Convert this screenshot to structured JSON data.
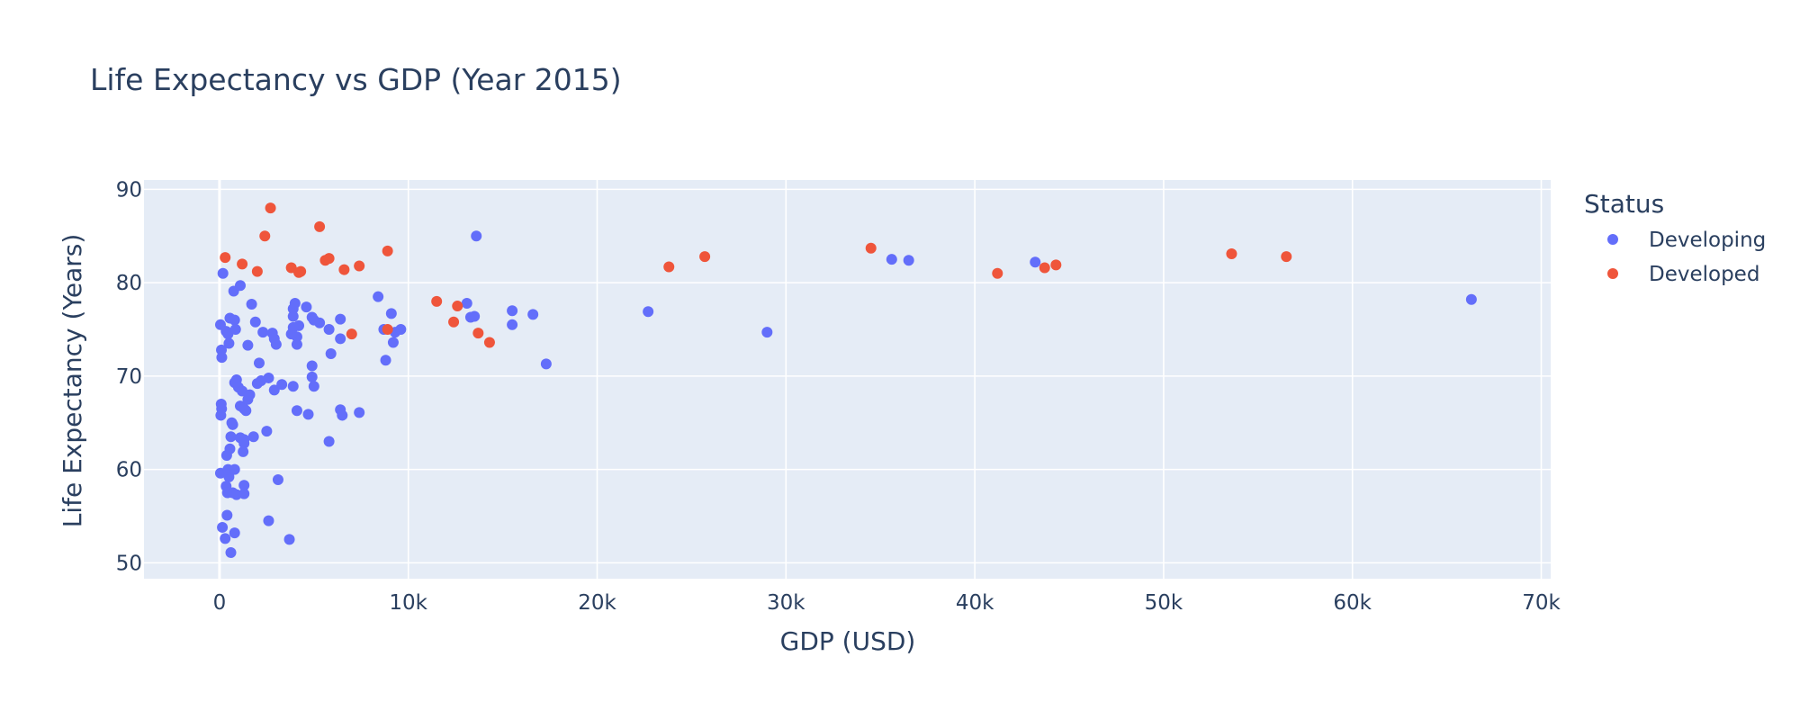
{
  "chart_data": {
    "type": "scatter",
    "title": "Life Expectancy vs GDP (Year 2015)",
    "xlabel": "GDP (USD)",
    "ylabel": "Life Expectancy (Years)",
    "xlim": [
      -4000,
      70500
    ],
    "ylim": [
      48.3,
      91
    ],
    "x_ticks": [
      0,
      10000,
      20000,
      30000,
      40000,
      50000,
      60000,
      70000
    ],
    "x_tick_labels": [
      "0",
      "10k",
      "20k",
      "30k",
      "40k",
      "50k",
      "60k",
      "70k"
    ],
    "y_ticks": [
      50,
      60,
      70,
      80,
      90
    ],
    "y_tick_labels": [
      "50",
      "60",
      "70",
      "80",
      "90"
    ],
    "grid": true,
    "background": "#e5ecf6",
    "legend": {
      "title": "Status",
      "placement": "right"
    },
    "series": [
      {
        "name": "Developing",
        "color": "#636efa",
        "points": [
          [
            50,
            75.5
          ],
          [
            100,
            72.8
          ],
          [
            120,
            72.0
          ],
          [
            180,
            81.0
          ],
          [
            90,
            67.0
          ],
          [
            110,
            66.5
          ],
          [
            70,
            65.8
          ],
          [
            50,
            59.6
          ],
          [
            150,
            53.8
          ],
          [
            300,
            52.6
          ],
          [
            600,
            51.1
          ],
          [
            400,
            55.1
          ],
          [
            350,
            58.2
          ],
          [
            420,
            57.5
          ],
          [
            500,
            59.2
          ],
          [
            450,
            60.0
          ],
          [
            380,
            61.5
          ],
          [
            550,
            62.2
          ],
          [
            600,
            63.5
          ],
          [
            700,
            64.8
          ],
          [
            650,
            65.0
          ],
          [
            500,
            73.5
          ],
          [
            450,
            74.5
          ],
          [
            350,
            74.8
          ],
          [
            550,
            76.2
          ],
          [
            800,
            76.0
          ],
          [
            850,
            75.0
          ],
          [
            750,
            79.1
          ],
          [
            1100,
            79.7
          ],
          [
            900,
            69.6
          ],
          [
            800,
            69.3
          ],
          [
            1000,
            68.8
          ],
          [
            1200,
            68.4
          ],
          [
            1100,
            66.8
          ],
          [
            1300,
            66.5
          ],
          [
            1400,
            66.3
          ],
          [
            1500,
            67.5
          ],
          [
            1600,
            68.0
          ],
          [
            1700,
            77.7
          ],
          [
            1500,
            73.3
          ],
          [
            1900,
            75.8
          ],
          [
            2100,
            71.4
          ],
          [
            2300,
            74.7
          ],
          [
            2800,
            74.6
          ],
          [
            2900,
            74.0
          ],
          [
            3000,
            73.4
          ],
          [
            2600,
            69.8
          ],
          [
            2900,
            68.5
          ],
          [
            3300,
            69.1
          ],
          [
            2000,
            69.2
          ],
          [
            2200,
            69.5
          ],
          [
            2500,
            64.1
          ],
          [
            1800,
            63.5
          ],
          [
            1300,
            63.2
          ],
          [
            1100,
            63.4
          ],
          [
            1300,
            62.8
          ],
          [
            1250,
            61.9
          ],
          [
            800,
            60.0
          ],
          [
            700,
            57.5
          ],
          [
            900,
            57.3
          ],
          [
            1300,
            57.4
          ],
          [
            1300,
            58.3
          ],
          [
            800,
            53.2
          ],
          [
            2600,
            54.5
          ],
          [
            3100,
            58.9
          ],
          [
            3700,
            52.5
          ],
          [
            3900,
            77.2
          ],
          [
            3900,
            76.4
          ],
          [
            4000,
            77.8
          ],
          [
            4200,
            75.4
          ],
          [
            4100,
            74.2
          ],
          [
            4100,
            73.4
          ],
          [
            3800,
            74.5
          ],
          [
            3900,
            75.2
          ],
          [
            4600,
            77.4
          ],
          [
            4900,
            76.3
          ],
          [
            5300,
            75.7
          ],
          [
            5000,
            76.0
          ],
          [
            5800,
            75.0
          ],
          [
            6400,
            76.1
          ],
          [
            6400,
            74.0
          ],
          [
            5900,
            72.4
          ],
          [
            4900,
            71.1
          ],
          [
            4900,
            69.9
          ],
          [
            5000,
            68.9
          ],
          [
            3900,
            68.9
          ],
          [
            4100,
            66.3
          ],
          [
            4700,
            65.9
          ],
          [
            6400,
            66.4
          ],
          [
            6500,
            65.8
          ],
          [
            7400,
            66.1
          ],
          [
            5800,
            63.0
          ],
          [
            8400,
            78.5
          ],
          [
            8700,
            75.0
          ],
          [
            9100,
            76.7
          ],
          [
            9300,
            74.7
          ],
          [
            9600,
            75.0
          ],
          [
            9200,
            73.6
          ],
          [
            8800,
            71.7
          ],
          [
            13100,
            77.8
          ],
          [
            13300,
            76.3
          ],
          [
            13500,
            76.4
          ],
          [
            13600,
            85.0
          ],
          [
            15500,
            77.0
          ],
          [
            15500,
            75.5
          ],
          [
            16600,
            76.6
          ],
          [
            17300,
            71.3
          ],
          [
            22700,
            76.9
          ],
          [
            29000,
            74.7
          ],
          [
            35600,
            82.5
          ],
          [
            36500,
            82.4
          ],
          [
            43200,
            82.2
          ],
          [
            66300,
            78.2
          ]
        ]
      },
      {
        "name": "Developed",
        "color": "#ef553b",
        "points": [
          [
            300,
            82.7
          ],
          [
            1200,
            82.0
          ],
          [
            2000,
            81.2
          ],
          [
            2400,
            85.0
          ],
          [
            2700,
            88.0
          ],
          [
            3800,
            81.6
          ],
          [
            4300,
            81.2
          ],
          [
            4200,
            81.1
          ],
          [
            5300,
            86.0
          ],
          [
            5600,
            82.4
          ],
          [
            5800,
            82.6
          ],
          [
            6600,
            81.4
          ],
          [
            7400,
            81.8
          ],
          [
            8900,
            83.4
          ],
          [
            7000,
            74.5
          ],
          [
            8900,
            75.0
          ],
          [
            11500,
            78.0
          ],
          [
            12600,
            77.5
          ],
          [
            12400,
            75.8
          ],
          [
            13700,
            74.6
          ],
          [
            14300,
            73.6
          ],
          [
            23800,
            81.7
          ],
          [
            25700,
            82.8
          ],
          [
            34500,
            83.7
          ],
          [
            41200,
            81.0
          ],
          [
            43700,
            81.6
          ],
          [
            44300,
            81.9
          ],
          [
            53600,
            83.1
          ],
          [
            56500,
            82.8
          ]
        ]
      }
    ]
  }
}
